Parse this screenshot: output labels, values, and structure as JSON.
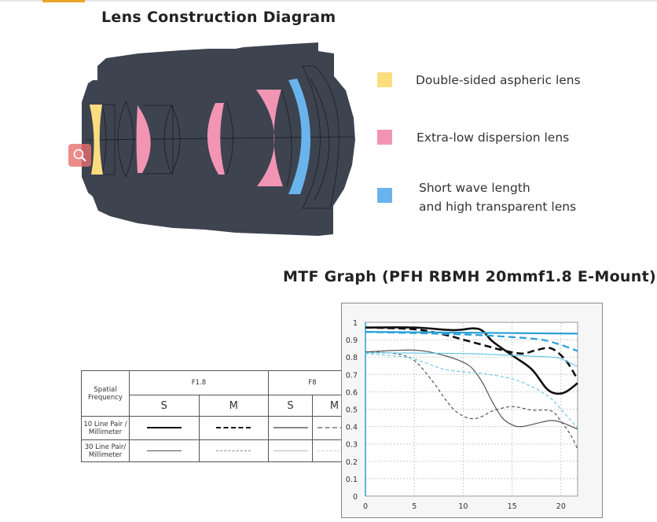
{
  "lens_section": {
    "title": "Lens Construction Diagram",
    "legend": [
      {
        "label": "Double-sided aspheric lens",
        "color": "#fbdd7e"
      },
      {
        "label": "Extra-low dispersion lens",
        "color": "#f294b3"
      },
      {
        "label_line1": "Short wave length",
        "label_line2": "and high transparent lens",
        "color": "#6ab4ee"
      }
    ],
    "zoom_icon": "magnifier-icon"
  },
  "mtf_section": {
    "title": "MTF Graph (PFH RBMH 20mmf1.8 E-Mount)",
    "key_table": {
      "header": "Spatial Frequency",
      "apertures": [
        "F1.8",
        "F8"
      ],
      "sub": [
        "S",
        "M",
        "S",
        "M"
      ],
      "rows": [
        {
          "line1": "10 Line Pair /",
          "line2": "Millimeter"
        },
        {
          "line1": "30 Line Pair/",
          "line2": "Millimeter"
        }
      ]
    }
  },
  "chart_data": {
    "type": "line",
    "title": "MTF Graph (PFH RBMH 20mmf1.8 E-Mount)",
    "xlabel": "",
    "ylabel": "",
    "xlim": [
      0,
      21.7
    ],
    "ylim": [
      0,
      1
    ],
    "grid": true,
    "xticks": [
      "0",
      "5",
      "10",
      "15",
      "20"
    ],
    "yticks": [
      "0",
      "0.1",
      "0.2",
      "0.3",
      "0.4",
      "0.5",
      "0.6",
      "0.7",
      "0.8",
      "0.9",
      "1"
    ],
    "series": [
      {
        "name": "F1.8 S 10lp/mm",
        "color": "#111111",
        "width": 2.6,
        "dash": "",
        "points": [
          [
            0,
            0.97
          ],
          [
            5,
            0.97
          ],
          [
            9,
            0.955
          ],
          [
            11,
            0.965
          ],
          [
            12,
            0.95
          ],
          [
            13,
            0.89
          ],
          [
            15,
            0.81
          ],
          [
            17,
            0.73
          ],
          [
            18.5,
            0.62
          ],
          [
            19.5,
            0.59
          ],
          [
            20.5,
            0.6
          ],
          [
            21.7,
            0.65
          ]
        ]
      },
      {
        "name": "F1.8 M 10lp/mm",
        "color": "#111111",
        "width": 2.6,
        "dash": "9 5",
        "points": [
          [
            0,
            0.97
          ],
          [
            5,
            0.96
          ],
          [
            8,
            0.93
          ],
          [
            10,
            0.9
          ],
          [
            12,
            0.87
          ],
          [
            14,
            0.84
          ],
          [
            16,
            0.82
          ],
          [
            17.5,
            0.84
          ],
          [
            19,
            0.85
          ],
          [
            20.5,
            0.78
          ],
          [
            21.7,
            0.67
          ]
        ]
      },
      {
        "name": "F8 S 10lp/mm",
        "color": "#2a9fd6",
        "width": 2.2,
        "dash": "",
        "points": [
          [
            0,
            0.945
          ],
          [
            21.7,
            0.935
          ]
        ]
      },
      {
        "name": "F8 M 10lp/mm",
        "color": "#2a9fd6",
        "width": 2.2,
        "dash": "9 5",
        "points": [
          [
            0,
            0.945
          ],
          [
            10,
            0.93
          ],
          [
            15,
            0.915
          ],
          [
            18,
            0.9
          ],
          [
            20,
            0.87
          ],
          [
            21.7,
            0.835
          ]
        ]
      },
      {
        "name": "F1.8 S 30lp/mm",
        "color": "#555555",
        "width": 1.2,
        "dash": "",
        "points": [
          [
            0,
            0.83
          ],
          [
            5,
            0.84
          ],
          [
            8,
            0.81
          ],
          [
            10,
            0.77
          ],
          [
            11,
            0.73
          ],
          [
            12,
            0.65
          ],
          [
            13,
            0.54
          ],
          [
            14,
            0.45
          ],
          [
            15,
            0.41
          ],
          [
            16,
            0.4
          ],
          [
            18,
            0.425
          ],
          [
            19,
            0.435
          ],
          [
            20,
            0.425
          ],
          [
            21.7,
            0.385
          ]
        ]
      },
      {
        "name": "F1.8 M 30lp/mm",
        "color": "#555555",
        "width": 1.2,
        "dash": "4 3",
        "points": [
          [
            0,
            0.83
          ],
          [
            3,
            0.82
          ],
          [
            5,
            0.78
          ],
          [
            7,
            0.65
          ],
          [
            8,
            0.57
          ],
          [
            9,
            0.5
          ],
          [
            10,
            0.46
          ],
          [
            11,
            0.445
          ],
          [
            12,
            0.46
          ],
          [
            13,
            0.49
          ],
          [
            15,
            0.515
          ],
          [
            17,
            0.495
          ],
          [
            19,
            0.49
          ],
          [
            20,
            0.43
          ],
          [
            21,
            0.35
          ],
          [
            21.7,
            0.27
          ]
        ]
      },
      {
        "name": "F8 S 30lp/mm",
        "color": "#6cc6e6",
        "width": 1.2,
        "dash": "",
        "points": [
          [
            0,
            0.825
          ],
          [
            10,
            0.82
          ],
          [
            15,
            0.81
          ],
          [
            19,
            0.8
          ],
          [
            20,
            0.79
          ],
          [
            21.7,
            0.745
          ]
        ]
      },
      {
        "name": "F8 M 30lp/mm",
        "color": "#6cc6e6",
        "width": 1.2,
        "dash": "4 3",
        "points": [
          [
            0,
            0.82
          ],
          [
            4,
            0.8
          ],
          [
            6,
            0.77
          ],
          [
            8,
            0.73
          ],
          [
            10,
            0.715
          ],
          [
            12,
            0.705
          ],
          [
            15,
            0.675
          ],
          [
            17,
            0.63
          ],
          [
            18,
            0.6
          ],
          [
            19,
            0.56
          ],
          [
            20,
            0.5
          ],
          [
            21.7,
            0.39
          ]
        ]
      }
    ]
  }
}
